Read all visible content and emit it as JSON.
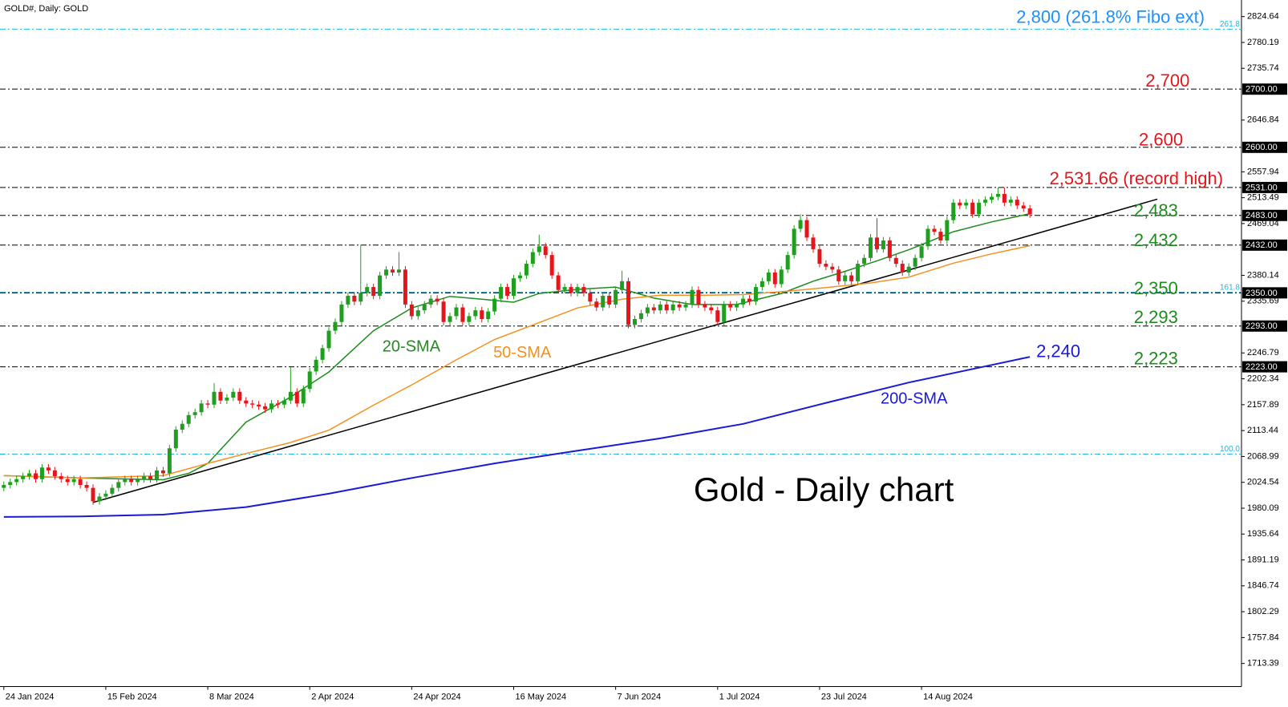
{
  "chart_data": {
    "type": "candlestick",
    "title": "GOLD#, Daily:  GOLD",
    "xlim": [
      -0.6,
      194.2
    ],
    "ylim": [
      1673.6,
      2853.1
    ],
    "xticks": [
      {
        "value": 0,
        "label": "24 Jan 2024"
      },
      {
        "value": 16,
        "label": "15 Feb 2024"
      },
      {
        "value": 32,
        "label": "8 Mar 2024"
      },
      {
        "value": 48,
        "label": "2 Apr 2024"
      },
      {
        "value": 64,
        "label": "24 Apr 2024"
      },
      {
        "value": 80,
        "label": "16 May 2024"
      },
      {
        "value": 96,
        "label": "7 Jun 2024"
      },
      {
        "value": 112,
        "label": "1 Jul 2024"
      },
      {
        "value": 128,
        "label": "23 Jul 2024"
      },
      {
        "value": 144,
        "label": "14 Aug 2024"
      }
    ],
    "yticks": [
      2824.64,
      2780.19,
      2735.74,
      2646.84,
      2557.94,
      2513.49,
      2469.04,
      2380.14,
      2335.69,
      2246.79,
      2202.34,
      2157.89,
      2113.44,
      2068.99,
      2024.54,
      1980.09,
      1935.64,
      1891.19,
      1846.74,
      1802.29,
      1757.84,
      1713.39
    ],
    "up_color": "#1f9e1f",
    "down_color": "#e3161b",
    "ohlc": [
      [
        2015,
        2026,
        2009,
        2020
      ],
      [
        2020,
        2031,
        2014,
        2025
      ],
      [
        2025,
        2036,
        2019,
        2030
      ],
      [
        2030,
        2041,
        2024,
        2035
      ],
      [
        2035,
        2046,
        2029,
        2040
      ],
      [
        2040,
        2046,
        2024,
        2030
      ],
      [
        2030,
        2056,
        2024,
        2050
      ],
      [
        2050,
        2056,
        2039,
        2045
      ],
      [
        2045,
        2051,
        2029,
        2035
      ],
      [
        2035,
        2041,
        2024,
        2030
      ],
      [
        2030,
        2036,
        2019,
        2025
      ],
      [
        2025,
        2036,
        2019,
        2030
      ],
      [
        2030,
        2036,
        2014,
        2020
      ],
      [
        2020,
        2026,
        2009,
        2015
      ],
      [
        2015,
        2021,
        1986,
        1992
      ],
      [
        1992,
        2006,
        1986,
        2000
      ],
      [
        2000,
        2011,
        1994,
        2005
      ],
      [
        2005,
        2021,
        1999,
        2015
      ],
      [
        2015,
        2031,
        2009,
        2025
      ],
      [
        2025,
        2036,
        2019,
        2030
      ],
      [
        2030,
        2036,
        2019,
        2025
      ],
      [
        2025,
        2036,
        2019,
        2030
      ],
      [
        2030,
        2041,
        2024,
        2035
      ],
      [
        2035,
        2041,
        2024,
        2030
      ],
      [
        2030,
        2051,
        2024,
        2045
      ],
      [
        2045,
        2051,
        2034,
        2040
      ],
      [
        2040,
        2089,
        2034,
        2083
      ],
      [
        2083,
        2121,
        2077,
        2115
      ],
      [
        2115,
        2131,
        2109,
        2125
      ],
      [
        2125,
        2146,
        2119,
        2140
      ],
      [
        2140,
        2151,
        2134,
        2145
      ],
      [
        2145,
        2166,
        2139,
        2160
      ],
      [
        2160,
        2166,
        2152,
        2158
      ],
      [
        2158,
        2195,
        2152,
        2180
      ],
      [
        2180,
        2186,
        2159,
        2165
      ],
      [
        2165,
        2176,
        2159,
        2170
      ],
      [
        2170,
        2186,
        2164,
        2180
      ],
      [
        2180,
        2186,
        2159,
        2165
      ],
      [
        2165,
        2171,
        2154,
        2160
      ],
      [
        2160,
        2166,
        2152,
        2158
      ],
      [
        2158,
        2164,
        2149,
        2155
      ],
      [
        2155,
        2161,
        2144,
        2150
      ],
      [
        2150,
        2166,
        2144,
        2160
      ],
      [
        2160,
        2166,
        2152,
        2158
      ],
      [
        2158,
        2171,
        2152,
        2165
      ],
      [
        2165,
        2222,
        2159,
        2180
      ],
      [
        2180,
        2186,
        2154,
        2160
      ],
      [
        2160,
        2191,
        2154,
        2185
      ],
      [
        2185,
        2221,
        2179,
        2215
      ],
      [
        2215,
        2241,
        2209,
        2235
      ],
      [
        2235,
        2261,
        2229,
        2255
      ],
      [
        2255,
        2291,
        2249,
        2285
      ],
      [
        2285,
        2306,
        2279,
        2300
      ],
      [
        2300,
        2336,
        2294,
        2330
      ],
      [
        2330,
        2351,
        2324,
        2345
      ],
      [
        2345,
        2351,
        2329,
        2335
      ],
      [
        2335,
        2432,
        2329,
        2350
      ],
      [
        2350,
        2366,
        2344,
        2360
      ],
      [
        2360,
        2366,
        2339,
        2345
      ],
      [
        2345,
        2386,
        2339,
        2380
      ],
      [
        2380,
        2396,
        2374,
        2390
      ],
      [
        2390,
        2396,
        2379,
        2385
      ],
      [
        2385,
        2420,
        2379,
        2390
      ],
      [
        2390,
        2396,
        2324,
        2330
      ],
      [
        2330,
        2336,
        2304,
        2310
      ],
      [
        2310,
        2326,
        2304,
        2320
      ],
      [
        2320,
        2336,
        2314,
        2330
      ],
      [
        2330,
        2346,
        2324,
        2340
      ],
      [
        2340,
        2346,
        2329,
        2335
      ],
      [
        2335,
        2341,
        2294,
        2300
      ],
      [
        2300,
        2316,
        2294,
        2310
      ],
      [
        2310,
        2331,
        2304,
        2325
      ],
      [
        2325,
        2331,
        2294,
        2300
      ],
      [
        2300,
        2316,
        2294,
        2310
      ],
      [
        2310,
        2326,
        2304,
        2320
      ],
      [
        2320,
        2326,
        2299,
        2305
      ],
      [
        2305,
        2324,
        2299,
        2318
      ],
      [
        2318,
        2346,
        2312,
        2340
      ],
      [
        2340,
        2366,
        2334,
        2360
      ],
      [
        2360,
        2366,
        2339,
        2345
      ],
      [
        2345,
        2381,
        2339,
        2375
      ],
      [
        2375,
        2386,
        2369,
        2380
      ],
      [
        2380,
        2406,
        2374,
        2400
      ],
      [
        2400,
        2426,
        2394,
        2420
      ],
      [
        2420,
        2450,
        2414,
        2430
      ],
      [
        2430,
        2436,
        2409,
        2415
      ],
      [
        2415,
        2421,
        2374,
        2380
      ],
      [
        2380,
        2386,
        2349,
        2355
      ],
      [
        2355,
        2366,
        2349,
        2360
      ],
      [
        2360,
        2366,
        2344,
        2350
      ],
      [
        2350,
        2366,
        2344,
        2360
      ],
      [
        2360,
        2366,
        2344,
        2350
      ],
      [
        2350,
        2356,
        2329,
        2335
      ],
      [
        2335,
        2341,
        2319,
        2325
      ],
      [
        2325,
        2351,
        2319,
        2345
      ],
      [
        2345,
        2351,
        2324,
        2330
      ],
      [
        2330,
        2361,
        2324,
        2355
      ],
      [
        2355,
        2388,
        2349,
        2370
      ],
      [
        2370,
        2376,
        2289,
        2295
      ],
      [
        2295,
        2311,
        2289,
        2305
      ],
      [
        2305,
        2321,
        2299,
        2315
      ],
      [
        2315,
        2331,
        2309,
        2325
      ],
      [
        2325,
        2331,
        2314,
        2320
      ],
      [
        2320,
        2336,
        2314,
        2330
      ],
      [
        2330,
        2336,
        2314,
        2320
      ],
      [
        2320,
        2336,
        2314,
        2330
      ],
      [
        2330,
        2336,
        2319,
        2325
      ],
      [
        2325,
        2336,
        2319,
        2330
      ],
      [
        2330,
        2361,
        2324,
        2355
      ],
      [
        2355,
        2361,
        2324,
        2330
      ],
      [
        2330,
        2336,
        2319,
        2325
      ],
      [
        2325,
        2331,
        2314,
        2320
      ],
      [
        2320,
        2326,
        2294,
        2300
      ],
      [
        2300,
        2336,
        2294,
        2330
      ],
      [
        2330,
        2336,
        2319,
        2325
      ],
      [
        2325,
        2336,
        2319,
        2330
      ],
      [
        2330,
        2346,
        2324,
        2340
      ],
      [
        2340,
        2346,
        2329,
        2335
      ],
      [
        2335,
        2366,
        2329,
        2360
      ],
      [
        2360,
        2376,
        2354,
        2370
      ],
      [
        2370,
        2391,
        2364,
        2385
      ],
      [
        2385,
        2391,
        2359,
        2365
      ],
      [
        2365,
        2396,
        2359,
        2390
      ],
      [
        2390,
        2421,
        2384,
        2415
      ],
      [
        2415,
        2466,
        2409,
        2460
      ],
      [
        2460,
        2485,
        2454,
        2475
      ],
      [
        2475,
        2481,
        2439,
        2445
      ],
      [
        2445,
        2451,
        2419,
        2425
      ],
      [
        2425,
        2431,
        2394,
        2400
      ],
      [
        2400,
        2406,
        2389,
        2395
      ],
      [
        2395,
        2401,
        2384,
        2390
      ],
      [
        2390,
        2396,
        2364,
        2370
      ],
      [
        2370,
        2386,
        2364,
        2380
      ],
      [
        2380,
        2386,
        2364,
        2370
      ],
      [
        2370,
        2406,
        2364,
        2400
      ],
      [
        2400,
        2416,
        2394,
        2410
      ],
      [
        2410,
        2451,
        2404,
        2445
      ],
      [
        2445,
        2478,
        2419,
        2425
      ],
      [
        2425,
        2446,
        2419,
        2440
      ],
      [
        2440,
        2446,
        2404,
        2410
      ],
      [
        2410,
        2416,
        2394,
        2400
      ],
      [
        2400,
        2406,
        2379,
        2385
      ],
      [
        2385,
        2401,
        2379,
        2395
      ],
      [
        2395,
        2416,
        2389,
        2410
      ],
      [
        2410,
        2436,
        2404,
        2430
      ],
      [
        2430,
        2466,
        2424,
        2460
      ],
      [
        2460,
        2466,
        2449,
        2455
      ],
      [
        2455,
        2461,
        2434,
        2440
      ],
      [
        2440,
        2481,
        2434,
        2475
      ],
      [
        2475,
        2511,
        2469,
        2505
      ],
      [
        2505,
        2511,
        2494,
        2500
      ],
      [
        2500,
        2511,
        2494,
        2505
      ],
      [
        2505,
        2511,
        2479,
        2485
      ],
      [
        2485,
        2511,
        2479,
        2505
      ],
      [
        2505,
        2516,
        2499,
        2510
      ],
      [
        2510,
        2521,
        2504,
        2515
      ],
      [
        2515,
        2531,
        2509,
        2520
      ],
      [
        2520,
        2531,
        2499,
        2505
      ],
      [
        2505,
        2516,
        2499,
        2510
      ],
      [
        2510,
        2516,
        2494,
        2500
      ],
      [
        2500,
        2506,
        2489,
        2495
      ],
      [
        2495,
        2501,
        2479,
        2485
      ]
    ],
    "series": [
      {
        "name": "20-SMA",
        "color": "#1e8c1e",
        "x": [
          0,
          12,
          25,
          29,
          32,
          38,
          45,
          51,
          58,
          64,
          70,
          75,
          80,
          84,
          90,
          96,
          102,
          108,
          115,
          122,
          127,
          132,
          137,
          142,
          149,
          155,
          161
        ],
        "values": [
          2036,
          2032,
          2029,
          2040,
          2057,
          2128,
          2171,
          2214,
          2285,
          2324,
          2344,
          2339,
          2334,
          2349,
          2356,
          2360,
          2341,
          2330,
          2330,
          2349,
          2370,
          2387,
          2405,
          2424,
          2455,
          2472,
          2486
        ]
      },
      {
        "name": "50-SMA",
        "color": "#f5901e",
        "x": [
          0,
          12,
          25,
          32,
          38,
          45,
          51,
          58,
          64,
          71,
          77,
          84,
          90,
          97,
          103,
          110,
          116,
          123,
          129,
          136,
          142,
          149,
          155,
          161
        ],
        "values": [
          2036,
          2032,
          2036,
          2057,
          2074,
          2093,
          2114,
          2157,
          2192,
          2235,
          2270,
          2299,
          2324,
          2339,
          2346,
          2346,
          2347,
          2353,
          2359,
          2367,
          2377,
          2401,
          2417,
          2431
        ]
      },
      {
        "name": "200-SMA",
        "color": "#1a1ad6",
        "x": [
          0,
          12,
          25,
          38,
          51,
          64,
          77,
          90,
          103,
          116,
          129,
          142,
          161
        ],
        "values": [
          1965,
          1966,
          1969,
          1982,
          2005,
          2032,
          2057,
          2079,
          2100,
          2125,
          2161,
          2196,
          2240
        ]
      }
    ],
    "trendline": {
      "x": [
        14,
        181
      ],
      "values": [
        1990,
        2511
      ],
      "color": "#000000"
    },
    "levels": [
      {
        "value": 2700,
        "label": "2700.00"
      },
      {
        "value": 2600,
        "label": "2600.00"
      },
      {
        "value": 2531,
        "label": "2531.00"
      },
      {
        "value": 2483,
        "label": "2483.00"
      },
      {
        "value": 2432,
        "label": "2432.00"
      },
      {
        "value": 2350,
        "label": "2350.00"
      },
      {
        "value": 2293,
        "label": "2293.00"
      },
      {
        "value": 2223,
        "label": "2223.00"
      }
    ],
    "fibo_color": "#1fb5e8",
    "fibo": [
      {
        "value": 2803,
        "label": "261.8"
      },
      {
        "value": 2351,
        "label": "161.8"
      },
      {
        "value": 2073,
        "label": "100.0"
      }
    ],
    "annotations": [
      {
        "text": "2,800 (261.8% Fibo ext)",
        "color": "#1e90ff"
      },
      {
        "text": "2,700",
        "color": "#e3161b"
      },
      {
        "text": "2,600",
        "color": "#e3161b"
      },
      {
        "text": "2,531.66 (record high)",
        "color": "#e3161b"
      },
      {
        "text": "2,483",
        "color": "#1e8c1e"
      },
      {
        "text": "2,432",
        "color": "#1e8c1e"
      },
      {
        "text": "2,350",
        "color": "#1e8c1e"
      },
      {
        "text": "2,293",
        "color": "#1e8c1e"
      },
      {
        "text": "2,223",
        "color": "#1e8c1e"
      },
      {
        "text": "2,240",
        "color": "#1a1ad6"
      },
      {
        "text": "Gold - Daily chart",
        "color": "#000000"
      }
    ]
  }
}
